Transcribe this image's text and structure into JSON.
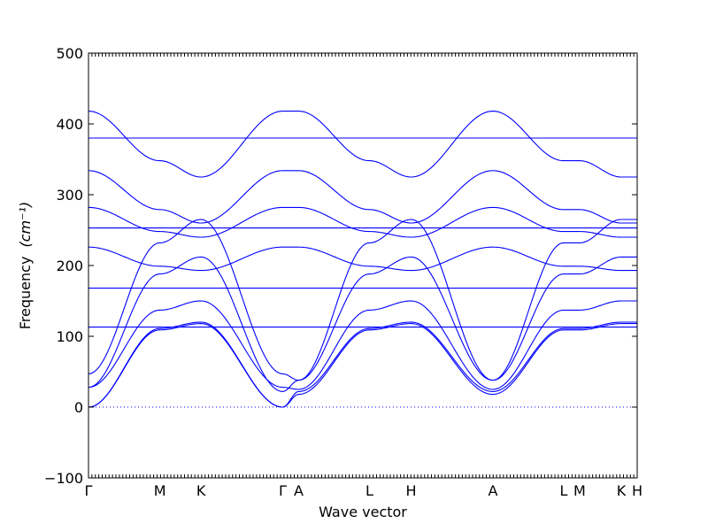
{
  "chart_data": {
    "type": "line",
    "xlabel": "Wave vector",
    "ylabel": "Frequency",
    "ylabel_unit": "(cm⁻¹)",
    "ylim": [
      -100,
      500
    ],
    "yticks": [
      -100,
      0,
      100,
      200,
      300,
      400,
      500
    ],
    "grid": false,
    "zero_line": {
      "y": 0,
      "style": "dotted"
    },
    "line_color": "#0000ff",
    "xticks": [
      {
        "label": "Γ",
        "x": 0.0
      },
      {
        "label": "M",
        "x": 0.13
      },
      {
        "label": "K",
        "x": 0.205
      },
      {
        "label": "Γ",
        "x": 0.354
      },
      {
        "label": "A",
        "x": 0.383
      },
      {
        "label": "L",
        "x": 0.512
      },
      {
        "label": "H",
        "x": 0.588
      },
      {
        "label": "A",
        "x": 0.737
      },
      {
        "label": "L",
        "x": 0.866
      },
      {
        "label": "M",
        "x": 0.895
      },
      {
        "label": "K",
        "x": 0.971
      },
      {
        "label": "H",
        "x": 1.0
      }
    ],
    "series": [
      {
        "values": [
          0,
          109,
          118,
          0,
          18,
          109,
          118,
          18,
          109,
          109,
          118,
          118
        ]
      },
      {
        "values": [
          0,
          111,
          120,
          0,
          22,
          111,
          120,
          22,
          111,
          111,
          120,
          120
        ]
      },
      {
        "values": [
          28,
          137,
          150,
          28,
          25,
          137,
          150,
          25,
          137,
          137,
          150,
          150
        ]
      },
      {
        "values": [
          28,
          188,
          212,
          22,
          38,
          188,
          212,
          38,
          188,
          188,
          212,
          212
        ]
      },
      {
        "values": [
          47,
          232,
          265,
          47,
          38,
          232,
          265,
          38,
          232,
          232,
          265,
          265
        ]
      },
      {
        "values": [
          113,
          113,
          113,
          113,
          113,
          113,
          113,
          113,
          113,
          113,
          113,
          113
        ]
      },
      {
        "values": [
          168,
          168,
          168,
          168,
          168,
          168,
          168,
          168,
          168,
          168,
          168,
          168
        ]
      },
      {
        "values": [
          226,
          199,
          193,
          226,
          226,
          199,
          193,
          226,
          199,
          199,
          193,
          193
        ]
      },
      {
        "values": [
          253,
          253,
          253,
          253,
          253,
          253,
          253,
          253,
          253,
          253,
          253,
          253
        ]
      },
      {
        "values": [
          282,
          248,
          240,
          282,
          282,
          248,
          240,
          282,
          248,
          248,
          240,
          240
        ]
      },
      {
        "values": [
          334,
          279,
          260,
          334,
          334,
          279,
          260,
          334,
          279,
          279,
          260,
          260
        ]
      },
      {
        "values": [
          380,
          380,
          380,
          380,
          380,
          380,
          380,
          380,
          380,
          380,
          380,
          380
        ]
      },
      {
        "values": [
          418,
          348,
          325,
          418,
          418,
          348,
          325,
          418,
          348,
          348,
          325,
          325
        ]
      }
    ]
  }
}
